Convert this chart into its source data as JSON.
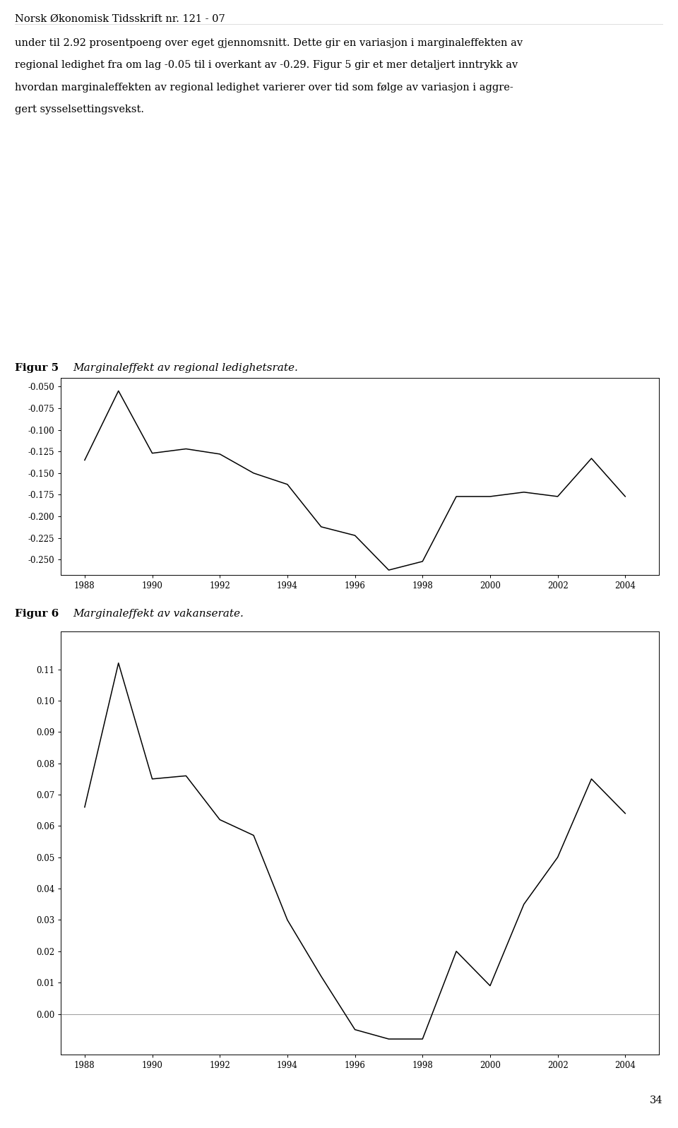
{
  "header_text": "Norsk Økonomisk Tidsskrift nr. 121 - 07",
  "body_text_lines": [
    "under til 2.92 prosentpoeng over eget gjennomsnitt. Dette gir en variasjon i marginaleffekten av",
    "regional ledighet fra om lag -0.05 til i overkant av -0.29. Figur 5 gir et mer detaljert inntrykk av",
    "hvordan marginaleffekten av regional ledighet varierer over tid som følge av variasjon i aggre-",
    "gert sysselsettingsvekst."
  ],
  "fig5_label": "Figur 5",
  "fig5_title": "Marginaleffekt av regional ledighetsrate.",
  "fig6_label": "Figur 6",
  "fig6_title": "Marginaleffekt av vakanserate.",
  "page_number": "34",
  "fig5_years": [
    1988,
    1989,
    1990,
    1991,
    1992,
    1993,
    1994,
    1995,
    1996,
    1997,
    1998,
    1999,
    2000,
    2001,
    2002,
    2003,
    2004
  ],
  "fig5_values": [
    -0.135,
    -0.055,
    -0.127,
    -0.122,
    -0.128,
    -0.15,
    -0.163,
    -0.212,
    -0.222,
    -0.262,
    -0.252,
    -0.177,
    -0.177,
    -0.172,
    -0.177,
    -0.133,
    -0.177
  ],
  "fig5_ylim": [
    -0.268,
    -0.04
  ],
  "fig5_yticks": [
    -0.05,
    -0.075,
    -0.1,
    -0.125,
    -0.15,
    -0.175,
    -0.2,
    -0.225,
    -0.25
  ],
  "fig5_xticks": [
    1988,
    1990,
    1992,
    1994,
    1996,
    1998,
    2000,
    2002,
    2004
  ],
  "fig6_years": [
    1988,
    1989,
    1990,
    1991,
    1992,
    1993,
    1994,
    1995,
    1996,
    1997,
    1998,
    1999,
    2000,
    2001,
    2002,
    2003,
    2004
  ],
  "fig6_values": [
    0.066,
    0.112,
    0.075,
    0.076,
    0.062,
    0.057,
    0.03,
    0.012,
    -0.005,
    -0.008,
    -0.008,
    0.02,
    0.009,
    0.035,
    0.05,
    0.075,
    0.064
  ],
  "fig6_ylim": [
    -0.013,
    0.122
  ],
  "fig6_yticks": [
    0.0,
    0.01,
    0.02,
    0.03,
    0.04,
    0.05,
    0.06,
    0.07,
    0.08,
    0.09,
    0.1,
    0.11
  ],
  "fig6_xticks": [
    1988,
    1990,
    1992,
    1994,
    1996,
    1998,
    2000,
    2002,
    2004
  ],
  "line_color": "#000000",
  "background_color": "#ffffff",
  "fig_background": "#ffffff"
}
